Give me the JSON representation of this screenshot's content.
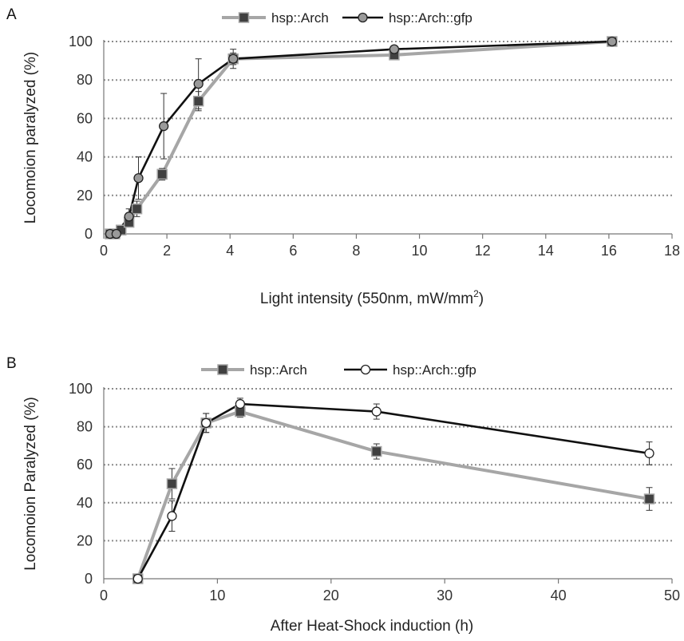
{
  "chart_data": [
    {
      "type": "line",
      "panel": "A",
      "title": "",
      "xlabel": "Light intensity (550nm, mW/mm",
      "xlabel_sup": "2",
      "xlabel_suffix": ")",
      "ylabel": "Locomoion paralyzed (%)",
      "xlim": [
        0,
        18
      ],
      "ylim": [
        0,
        100
      ],
      "xticks": [
        0,
        2,
        4,
        6,
        8,
        10,
        12,
        14,
        16,
        18
      ],
      "yticks": [
        0,
        20,
        40,
        60,
        80,
        100
      ],
      "grid": "horizontal dotted",
      "legend_position": "top",
      "series": [
        {
          "name": "hsp::Arch",
          "color": "#a6a6a6",
          "marker": "square",
          "marker_color": "#404040",
          "x": [
            0.2,
            0.35,
            0.55,
            0.8,
            1.05,
            1.85,
            3.0,
            4.1,
            9.2,
            16.1
          ],
          "y": [
            0,
            0,
            2,
            6,
            13,
            31,
            69,
            91,
            93,
            100
          ],
          "err": [
            0,
            0,
            1,
            2,
            4,
            3,
            5,
            3,
            2,
            0
          ]
        },
        {
          "name": "hsp::Arch::gfp",
          "color": "#111111",
          "marker": "circle",
          "marker_color": "#9a9a9a",
          "x": [
            0.2,
            0.4,
            0.8,
            1.1,
            1.9,
            3.0,
            4.1,
            9.2,
            16.1
          ],
          "y": [
            0,
            0,
            9,
            29,
            56,
            78,
            91,
            96,
            100
          ],
          "err": [
            0,
            0,
            4,
            11,
            17,
            13,
            5,
            1,
            0
          ]
        }
      ]
    },
    {
      "type": "line",
      "panel": "B",
      "title": "",
      "xlabel": "After Heat-Shock induction (h)",
      "ylabel": "Locomoion Paralyzed (%)",
      "xlim": [
        0,
        50
      ],
      "ylim": [
        0,
        100
      ],
      "xticks": [
        0,
        10,
        20,
        30,
        40,
        50
      ],
      "yticks": [
        0,
        20,
        40,
        60,
        80,
        100
      ],
      "grid": "horizontal dotted",
      "legend_position": "top",
      "series": [
        {
          "name": "hsp::Arch",
          "color": "#a6a6a6",
          "marker": "square",
          "marker_color": "#404040",
          "x": [
            3,
            6,
            9,
            12,
            24,
            48
          ],
          "y": [
            0,
            50,
            82,
            88,
            67,
            42
          ],
          "err": [
            0,
            8,
            5,
            3,
            4,
            6
          ]
        },
        {
          "name": "hsp::Arch::gfp",
          "color": "#111111",
          "marker": "circle",
          "marker_color": "#ffffff",
          "x": [
            3,
            6,
            9,
            12,
            24,
            48
          ],
          "y": [
            0,
            33,
            82,
            92,
            88,
            66
          ],
          "err": [
            0,
            8,
            5,
            3,
            4,
            6
          ]
        }
      ]
    }
  ]
}
